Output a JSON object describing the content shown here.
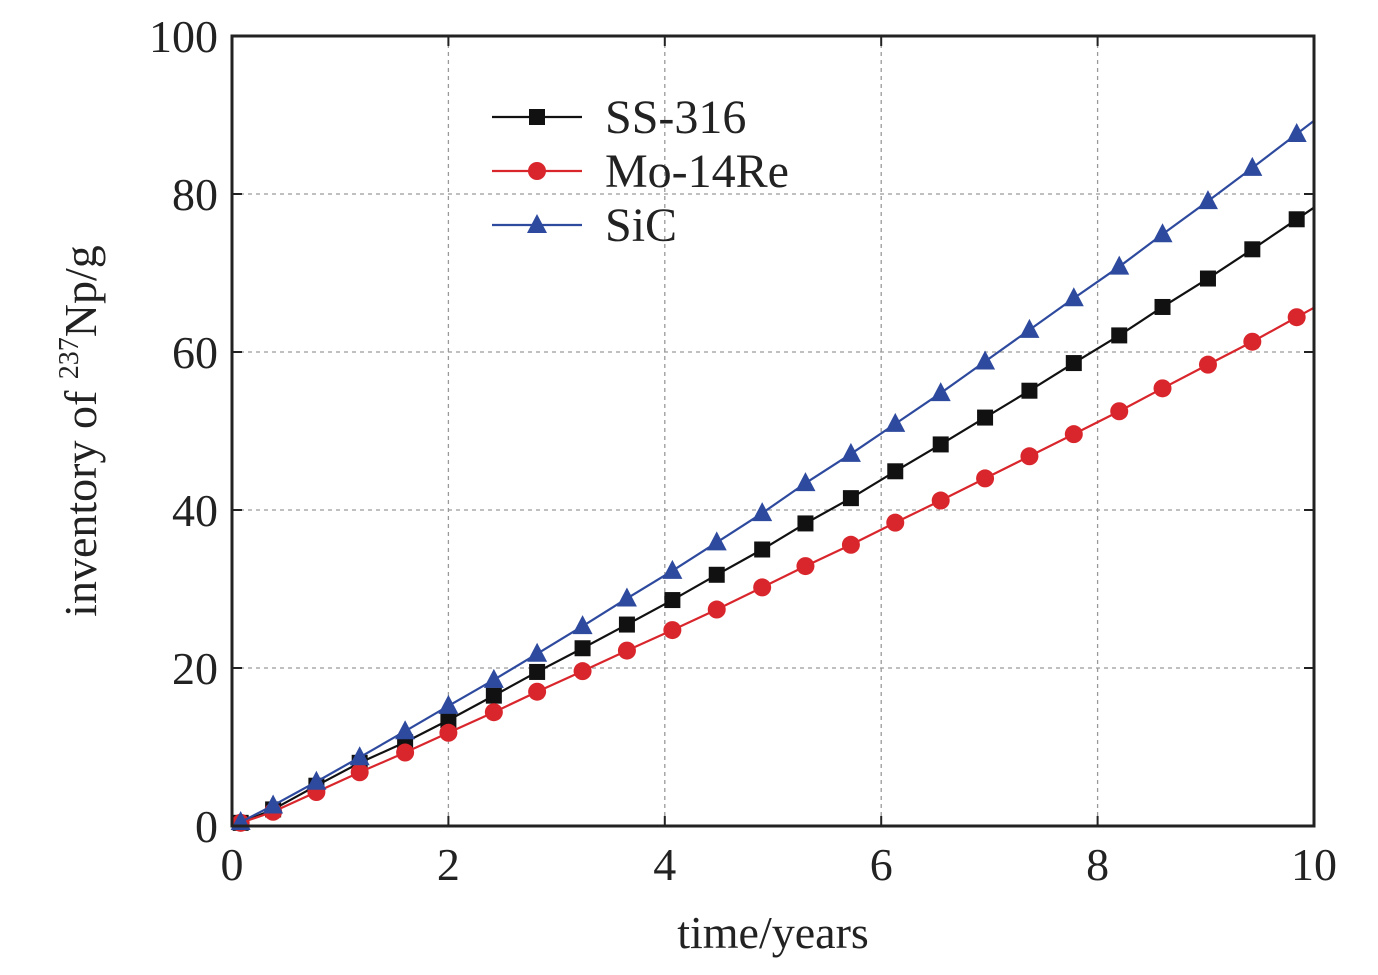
{
  "chart_data": {
    "type": "line",
    "xlabel": "time/years",
    "ylabel": {
      "prefix": "inventory of ",
      "superscript": "237",
      "suffix": "Np/g"
    },
    "xlim": [
      0,
      10
    ],
    "ylim": [
      0,
      100
    ],
    "xticks": [
      0,
      2,
      4,
      6,
      8,
      10
    ],
    "yticks": [
      0,
      20,
      40,
      60,
      80,
      100
    ],
    "grid": true,
    "grid_style": "dashed",
    "legend_position": "top-left",
    "series": [
      {
        "name": "SS-316",
        "color": "#111111",
        "marker": "square",
        "x": [
          0.08,
          0.38,
          0.78,
          1.18,
          1.6,
          2.0,
          2.42,
          2.82,
          3.24,
          3.65,
          4.07,
          4.48,
          4.9,
          5.3,
          5.72,
          6.13,
          6.55,
          6.96,
          7.37,
          7.78,
          8.2,
          8.6,
          9.02,
          9.43,
          9.84
        ],
        "y": [
          0.4,
          2.1,
          5.1,
          8.0,
          10.6,
          13.4,
          16.5,
          19.5,
          22.5,
          25.5,
          28.6,
          31.8,
          35.0,
          38.3,
          41.5,
          44.9,
          48.3,
          51.7,
          55.1,
          58.6,
          62.1,
          65.7,
          69.3,
          73.0,
          76.8
        ]
      },
      {
        "name": "Mo-14Re",
        "color": "#d9262c",
        "marker": "circle",
        "x": [
          0.08,
          0.38,
          0.78,
          1.18,
          1.6,
          2.0,
          2.42,
          2.82,
          3.24,
          3.65,
          4.07,
          4.48,
          4.9,
          5.3,
          5.72,
          6.13,
          6.55,
          6.96,
          7.37,
          7.78,
          8.2,
          8.6,
          9.02,
          9.43,
          9.84
        ],
        "y": [
          0.4,
          1.8,
          4.3,
          6.8,
          9.3,
          11.8,
          14.4,
          17.0,
          19.6,
          22.2,
          24.8,
          27.4,
          30.2,
          32.9,
          35.6,
          38.4,
          41.2,
          44.0,
          46.8,
          49.6,
          52.5,
          55.4,
          58.4,
          61.3,
          64.4
        ]
      },
      {
        "name": "SiC",
        "color": "#2e4a9e",
        "marker": "triangle",
        "x": [
          0.08,
          0.38,
          0.78,
          1.18,
          1.6,
          2.0,
          2.42,
          2.82,
          3.24,
          3.65,
          4.07,
          4.48,
          4.9,
          5.3,
          5.72,
          6.13,
          6.55,
          6.96,
          7.37,
          7.78,
          8.2,
          8.6,
          9.02,
          9.43,
          9.84
        ],
        "y": [
          0.5,
          2.6,
          5.6,
          8.7,
          12.0,
          15.2,
          18.5,
          21.8,
          25.3,
          28.8,
          32.3,
          35.9,
          39.6,
          43.4,
          47.1,
          50.9,
          54.8,
          58.8,
          62.8,
          66.8,
          70.8,
          74.9,
          79.1,
          83.3,
          87.6
        ]
      }
    ]
  }
}
